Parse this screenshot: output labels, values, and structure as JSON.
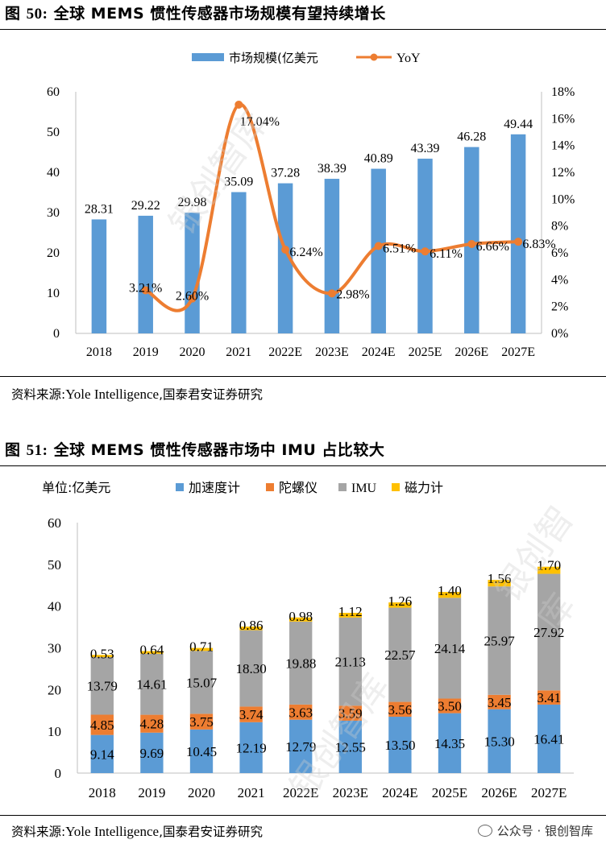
{
  "figure1": {
    "title_prefix": "图 ",
    "title_num": "50:",
    "title_text": " 全球 MEMS 惯性传感器市场规模有望持续增长",
    "source_prefix": "资料来源:",
    "source_en": "Yole Intelligence",
    "source_suffix": ",国泰君安证券研究"
  },
  "figure2": {
    "title_prefix": "图 ",
    "title_num": "51:",
    "title_text": " 全球 MEMS 惯性传感器市场中 IMU 占比较大",
    "source_prefix": "资料来源:",
    "source_en": "Yole Intelligence",
    "source_suffix": ",国泰君安证券研究",
    "unit_label": "单位:亿美元"
  },
  "wechat_label": "公众号 · 银创智库",
  "watermark_text": "银创智库",
  "chart_data": [
    {
      "type": "bar",
      "combo": "bar+line",
      "categories": [
        "2018",
        "2019",
        "2020",
        "2021",
        "2022E",
        "2023E",
        "2024E",
        "2025E",
        "2026E",
        "2027E"
      ],
      "series": [
        {
          "name": "市场规模(亿美元",
          "kind": "bar",
          "axis": "left",
          "values": [
            28.31,
            29.22,
            29.98,
            35.09,
            37.28,
            38.39,
            40.89,
            43.39,
            46.28,
            49.44
          ],
          "labels": [
            "28.31",
            "29.22",
            "29.98",
            "35.09",
            "37.28",
            "38.39",
            "40.89",
            "43.39",
            "46.28",
            "49.44"
          ],
          "color": "#5b9bd5"
        },
        {
          "name": "YoY",
          "kind": "line",
          "axis": "right",
          "values": [
            null,
            3.21,
            2.6,
            17.04,
            6.24,
            2.98,
            6.51,
            6.11,
            6.66,
            6.83
          ],
          "labels": [
            "",
            "3.21%",
            "2.60%",
            "17.04%",
            "6.24%",
            "2.98%",
            "6.51%",
            "6.11%",
            "6.66%",
            "6.83%"
          ],
          "color": "#ed7d31"
        }
      ],
      "ylim_left": [
        0,
        60
      ],
      "yticks_left": [
        "0",
        "10",
        "20",
        "30",
        "40",
        "50",
        "60"
      ],
      "ylim_right": [
        0,
        18
      ],
      "yticks_right": [
        "0%",
        "2%",
        "4%",
        "6%",
        "8%",
        "10%",
        "12%",
        "14%",
        "16%",
        "18%"
      ],
      "legend_position": "top-center",
      "grid": false
    },
    {
      "type": "bar",
      "stacked": true,
      "categories": [
        "2018",
        "2019",
        "2020",
        "2021",
        "2022E",
        "2023E",
        "2024E",
        "2025E",
        "2026E",
        "2027E"
      ],
      "series": [
        {
          "name": "加速度计",
          "values": [
            9.14,
            9.69,
            10.45,
            12.19,
            12.79,
            12.55,
            13.5,
            14.35,
            15.3,
            16.41
          ],
          "labels": [
            "9.14",
            "9.69",
            "10.45",
            "12.19",
            "12.79",
            "12.55",
            "13.50",
            "14.35",
            "15.30",
            "16.41"
          ],
          "color": "#5b9bd5"
        },
        {
          "name": "陀螺仪",
          "values": [
            4.85,
            4.28,
            3.75,
            3.74,
            3.63,
            3.59,
            3.56,
            3.5,
            3.45,
            3.41
          ],
          "labels": [
            "4.85",
            "4.28",
            "3.75",
            "3.74",
            "3.63",
            "3.59",
            "3.56",
            "3.50",
            "3.45",
            "3.41"
          ],
          "color": "#ed7d31"
        },
        {
          "name": "IMU",
          "values": [
            13.79,
            14.61,
            15.07,
            18.3,
            19.88,
            21.13,
            22.57,
            24.14,
            25.97,
            27.92
          ],
          "labels": [
            "13.79",
            "14.61",
            "15.07",
            "18.30",
            "19.88",
            "21.13",
            "22.57",
            "24.14",
            "25.97",
            "27.92"
          ],
          "color": "#a5a5a5"
        },
        {
          "name": "磁力计",
          "values": [
            0.53,
            0.64,
            0.71,
            0.86,
            0.98,
            1.12,
            1.26,
            1.4,
            1.56,
            1.7
          ],
          "labels": [
            "0.53",
            "0.64",
            "0.71",
            "0.86",
            "0.98",
            "1.12",
            "1.26",
            "1.40",
            "1.56",
            "1.70"
          ],
          "color": "#ffc000"
        }
      ],
      "ylim": [
        0,
        60
      ],
      "yticks": [
        "0",
        "10",
        "20",
        "30",
        "40",
        "50",
        "60"
      ],
      "legend_position": "top-center",
      "grid": false
    }
  ]
}
